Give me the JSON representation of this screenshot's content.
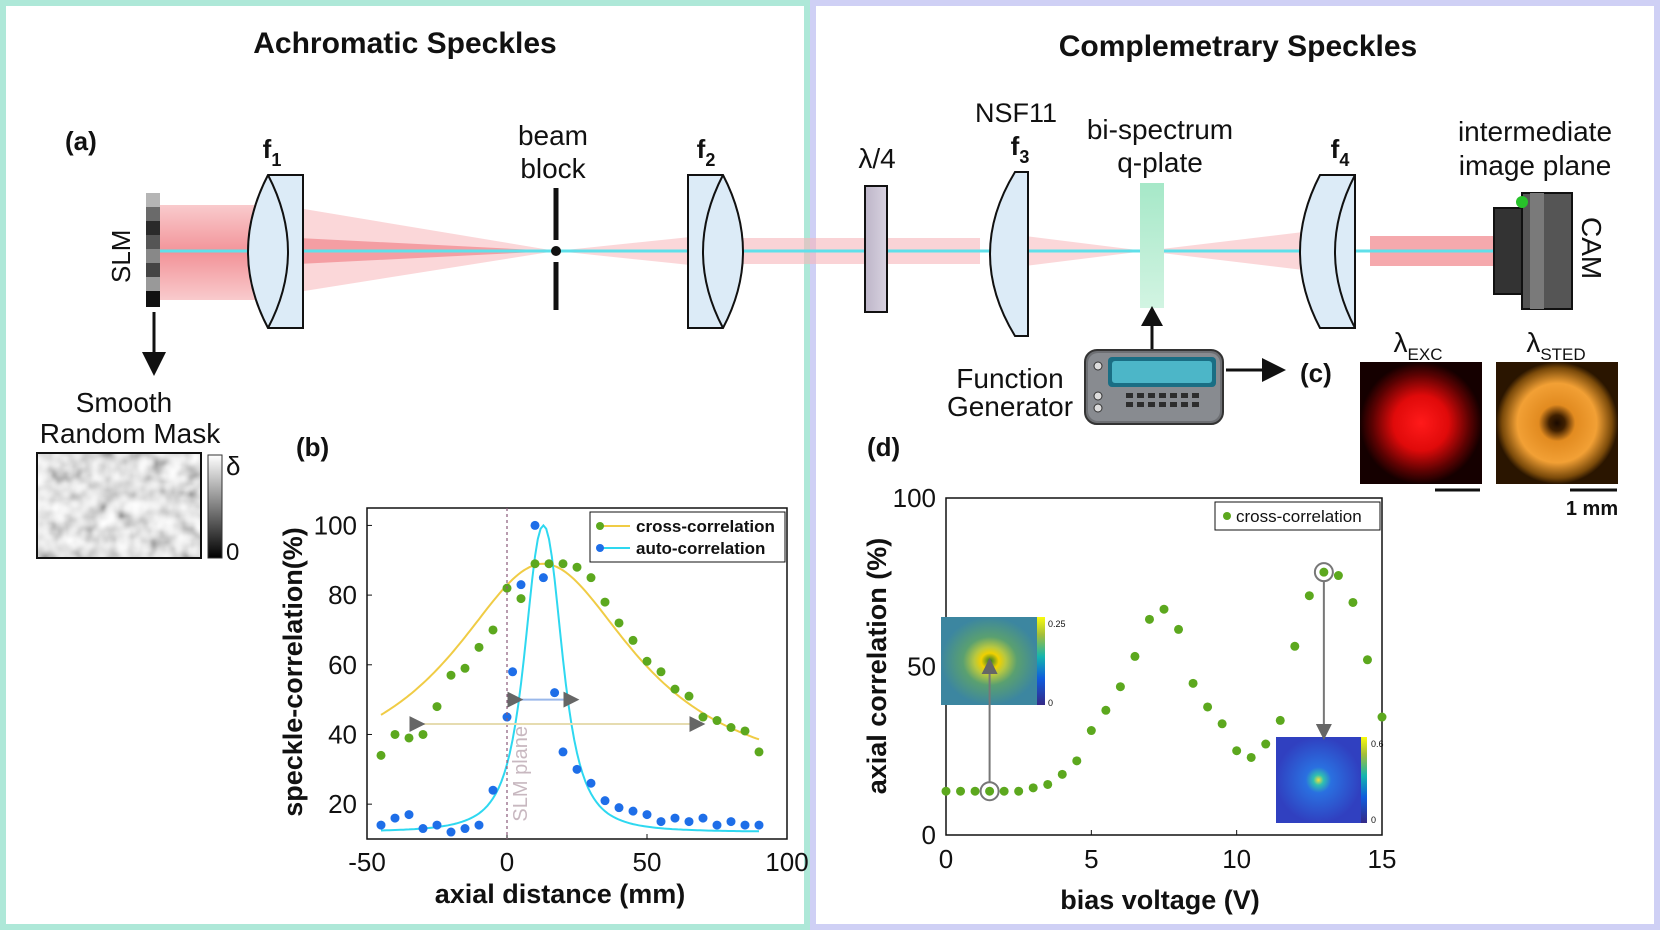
{
  "left_panel": {
    "title": "Achromatic Speckles",
    "label_a": "(a)",
    "slm": "SLM",
    "f1": "f",
    "f1_sub": "1",
    "beam_block_l1": "beam",
    "beam_block_l2": "block",
    "f2": "f",
    "f2_sub": "2",
    "mask_l1": "Smooth",
    "mask_l2": "Random Mask",
    "mask_scale_top": "δ",
    "mask_scale_bottom": "0",
    "colors": {
      "border": "#aee8d8",
      "red_beam": "#f48a8e",
      "cyan_beam": "#5fe0ea",
      "lens": "#dcebf7"
    }
  },
  "right_panel": {
    "title": "Complemetrary Speckles",
    "qwp": "λ/4",
    "nsf": "NSF11",
    "f3": "f",
    "f3_sub": "3",
    "qplate_l1": "bi-spectrum",
    "qplate_l2": "q-plate",
    "f4": "f",
    "f4_sub": "4",
    "iip_l1": "intermediate",
    "iip_l2": "image plane",
    "cam": "CAM",
    "fg_l1": "Function",
    "fg_l2": "Generator",
    "label_c": "(c)",
    "lambda_exc": "λ",
    "lambda_exc_sub": "EXC",
    "lambda_sted": "λ",
    "lambda_sted_sub": "STED",
    "scalebar": "1 mm",
    "colors": {
      "border": "#cfd0f5",
      "exc": "#ff1010",
      "sted": "#f5a030"
    }
  },
  "chart_b": {
    "label": "(b)",
    "ylabel": "speckle-correlation(%)",
    "xlabel": "axial distance (mm)",
    "xticks": [
      "-50",
      "0",
      "50",
      "100"
    ],
    "yticks": [
      "20",
      "40",
      "60",
      "80",
      "100"
    ],
    "legend": [
      "cross-correlation",
      "auto-correlation"
    ],
    "plane_label": "SLM plane"
  },
  "chart_d": {
    "label": "(d)",
    "ylabel": "axial correlation (%)",
    "xlabel": "bias voltage (V)",
    "xticks": [
      "0",
      "5",
      "10",
      "15"
    ],
    "yticks": [
      "0",
      "50",
      "100"
    ],
    "legend": [
      "cross-correlation"
    ],
    "inset1_max": "0.25",
    "inset1_min": "0",
    "inset2_max": "0.6",
    "inset2_min": "0"
  },
  "chart_data": [
    {
      "type": "scatter",
      "xlabel": "axial distance (mm)",
      "ylabel": "speckle-correlation(%)",
      "xlim": [
        -50,
        100
      ],
      "ylim": [
        10,
        105
      ],
      "series": [
        {
          "name": "cross-correlation",
          "color": "#5ca81e",
          "x": [
            -45,
            -40,
            -35,
            -30,
            -25,
            -20,
            -15,
            -10,
            -5,
            0,
            5,
            10,
            15,
            20,
            25,
            30,
            35,
            40,
            45,
            50,
            55,
            60,
            65,
            70,
            75,
            80,
            85,
            90
          ],
          "y": [
            34,
            40,
            39,
            40,
            48,
            57,
            59,
            65,
            70,
            82,
            79,
            89,
            89,
            89,
            88,
            85,
            78,
            72,
            67,
            61,
            58,
            53,
            51,
            45,
            44,
            42,
            41,
            35
          ]
        },
        {
          "name": "auto-correlation",
          "color": "#1e6ee8",
          "x": [
            -45,
            -40,
            -35,
            -30,
            -25,
            -20,
            -15,
            -10,
            -5,
            0,
            2,
            5,
            10,
            13,
            17,
            20,
            25,
            30,
            35,
            40,
            45,
            50,
            55,
            60,
            65,
            70,
            75,
            80,
            85,
            90
          ],
          "y": [
            14,
            16,
            17,
            13,
            14,
            12,
            13,
            14,
            24,
            45,
            58,
            83,
            100,
            85,
            52,
            35,
            30,
            26,
            21,
            19,
            18,
            17,
            15,
            16,
            15,
            16,
            14,
            15,
            14,
            14
          ]
        }
      ]
    },
    {
      "type": "scatter",
      "xlabel": "bias voltage (V)",
      "ylabel": "axial correlation (%)",
      "xlim": [
        0,
        15
      ],
      "ylim": [
        0,
        100
      ],
      "series": [
        {
          "name": "cross-correlation",
          "color": "#5ca81e",
          "x": [
            0,
            0.5,
            1,
            1.5,
            2,
            2.5,
            3,
            3.5,
            4,
            4.5,
            5,
            5.5,
            6,
            6.5,
            7,
            7.5,
            8,
            8.5,
            9,
            9.5,
            10,
            10.5,
            11,
            11.5,
            12,
            12.5,
            13,
            13.5,
            14,
            14.5,
            15
          ],
          "y": [
            13,
            13,
            13,
            13,
            13,
            13,
            14,
            15,
            18,
            22,
            31,
            37,
            44,
            53,
            64,
            67,
            61,
            45,
            38,
            33,
            25,
            23,
            27,
            34,
            56,
            71,
            78,
            77,
            69,
            52,
            35
          ]
        }
      ]
    }
  ]
}
